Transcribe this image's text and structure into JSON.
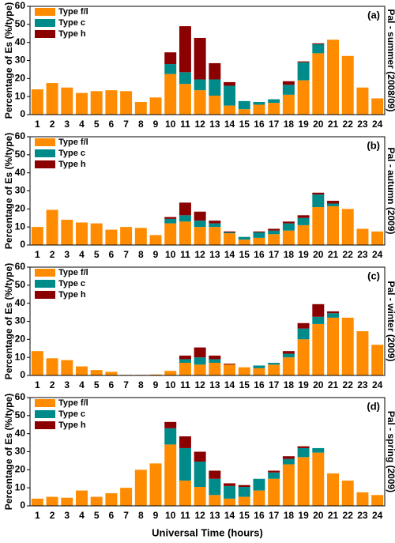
{
  "chart_data": [
    {
      "type": "bar",
      "stacked": true,
      "panel_label": "(a)",
      "side_label": "Pal - summer (2008/09)",
      "ylabel": "Percentage of Es (%/type)",
      "categories": [
        "1",
        "2",
        "3",
        "4",
        "5",
        "6",
        "7",
        "8",
        "9",
        "10",
        "11",
        "12",
        "13",
        "14",
        "15",
        "16",
        "17",
        "18",
        "19",
        "20",
        "21",
        "22",
        "23",
        "24"
      ],
      "series": [
        {
          "name": "Type f/l",
          "color": "#ff8c00",
          "values": [
            14,
            17.5,
            15,
            12,
            13,
            13.5,
            13,
            7,
            9.5,
            22.5,
            17,
            13.5,
            10.5,
            5,
            3,
            5.5,
            6.5,
            11,
            19,
            34,
            41.5,
            32.5,
            15,
            9
          ]
        },
        {
          "name": "Type c",
          "color": "#008b8b",
          "values": [
            0,
            0,
            0,
            0,
            0,
            0,
            0,
            0,
            0,
            5.5,
            6.5,
            6,
            9,
            11,
            4.5,
            1.5,
            2,
            5.5,
            10,
            5,
            0,
            0,
            0,
            0
          ]
        },
        {
          "name": "Type h",
          "color": "#8b0000",
          "values": [
            0,
            0,
            0,
            0,
            0,
            0,
            0,
            0,
            0,
            6.5,
            25.5,
            23,
            9,
            2,
            0,
            0,
            0,
            2,
            0.5,
            0.5,
            0,
            0,
            0,
            0
          ]
        }
      ],
      "ylim": [
        0,
        60
      ],
      "yticks": [
        0,
        10,
        20,
        30,
        40,
        50,
        60
      ],
      "legend": "upper left"
    },
    {
      "type": "bar",
      "stacked": true,
      "panel_label": "(b)",
      "side_label": "Pal - autumn (2009)",
      "ylabel": "Percentage of Es (%/type)",
      "categories": [
        "1",
        "2",
        "3",
        "4",
        "5",
        "6",
        "7",
        "8",
        "9",
        "10",
        "11",
        "12",
        "13",
        "14",
        "15",
        "16",
        "17",
        "18",
        "19",
        "20",
        "21",
        "22",
        "23",
        "24"
      ],
      "series": [
        {
          "name": "Type f/l",
          "color": "#ff8c00",
          "values": [
            10,
            19.5,
            14,
            12.5,
            12,
            8.5,
            10,
            9.5,
            5.5,
            12,
            13,
            10,
            10,
            6.5,
            3,
            4,
            6,
            8,
            11,
            21,
            21.5,
            20,
            9,
            7.5
          ]
        },
        {
          "name": "Type c",
          "color": "#008b8b",
          "values": [
            0,
            0,
            0,
            0,
            0,
            0,
            0,
            0,
            0,
            2.5,
            3.5,
            3.5,
            2,
            0.5,
            1.5,
            3,
            2,
            4,
            4,
            7,
            1.5,
            0,
            0,
            0
          ]
        },
        {
          "name": "Type h",
          "color": "#8b0000",
          "values": [
            0,
            0,
            0,
            0,
            0,
            0,
            0,
            0,
            0,
            1,
            7,
            5,
            1.5,
            0.5,
            0,
            0.5,
            1,
            1,
            1.5,
            1,
            1.5,
            0,
            0,
            0
          ]
        }
      ],
      "ylim": [
        0,
        60
      ],
      "yticks": [
        0,
        10,
        20,
        30,
        40,
        50,
        60
      ],
      "legend": "upper left"
    },
    {
      "type": "bar",
      "stacked": true,
      "panel_label": "(c)",
      "side_label": "Pal - winter (2009)",
      "ylabel": "Percentage of Es (%/type)",
      "categories": [
        "1",
        "2",
        "3",
        "4",
        "5",
        "6",
        "7",
        "8",
        "9",
        "10",
        "11",
        "12",
        "13",
        "14",
        "15",
        "16",
        "17",
        "18",
        "19",
        "20",
        "21",
        "22",
        "23",
        "24"
      ],
      "series": [
        {
          "name": "Type f/l",
          "color": "#ff8c00",
          "values": [
            13.5,
            9.5,
            8.5,
            5,
            3,
            2,
            0.3,
            0.3,
            0.5,
            2.5,
            7,
            6,
            7,
            6,
            4.5,
            4,
            6,
            10,
            20,
            28.5,
            32,
            32,
            24.5,
            17
          ]
        },
        {
          "name": "Type c",
          "color": "#008b8b",
          "values": [
            0,
            0,
            0,
            0,
            0,
            0,
            0,
            0,
            0,
            0,
            2,
            4,
            2,
            0,
            0,
            1.5,
            1,
            2,
            6,
            4,
            2.5,
            0,
            0,
            0
          ]
        },
        {
          "name": "Type h",
          "color": "#8b0000",
          "values": [
            0,
            0,
            0,
            0,
            0,
            0,
            0,
            0,
            0,
            0,
            2,
            5.5,
            2,
            0.5,
            0,
            0,
            0,
            1.5,
            3,
            7,
            1,
            0,
            0,
            0
          ]
        }
      ],
      "ylim": [
        0,
        60
      ],
      "yticks": [
        0,
        10,
        20,
        30,
        40,
        50,
        60
      ],
      "legend": "upper left"
    },
    {
      "type": "bar",
      "stacked": true,
      "panel_label": "(d)",
      "side_label": "Pal - spring (2009)",
      "ylabel": "Percentage of Es (%/type)",
      "xlabel": "Universal Time (hours)",
      "categories": [
        "1",
        "2",
        "3",
        "4",
        "5",
        "6",
        "7",
        "8",
        "9",
        "10",
        "11",
        "12",
        "13",
        "14",
        "15",
        "16",
        "17",
        "18",
        "19",
        "20",
        "21",
        "22",
        "23",
        "24"
      ],
      "series": [
        {
          "name": "Type f/l",
          "color": "#ff8c00",
          "values": [
            4,
            5,
            4.5,
            8.5,
            5,
            7,
            10,
            20,
            23.5,
            34,
            14,
            10.5,
            6,
            4,
            5,
            8.5,
            15,
            23,
            27,
            29.5,
            18,
            14,
            7.5,
            6
          ]
        },
        {
          "name": "Type c",
          "color": "#008b8b",
          "values": [
            0,
            0,
            0,
            0,
            0,
            0,
            0,
            0,
            0,
            9,
            18,
            14,
            9,
            7,
            5.5,
            6.5,
            3.5,
            3,
            5,
            2.5,
            0,
            0,
            0,
            0
          ]
        },
        {
          "name": "Type h",
          "color": "#8b0000",
          "values": [
            0,
            0,
            0,
            0,
            0,
            0,
            0,
            0,
            0,
            3.5,
            6.5,
            5.5,
            4.5,
            1.5,
            1,
            0,
            1,
            1.5,
            1,
            0,
            0,
            0,
            0,
            0
          ]
        }
      ],
      "ylim": [
        0,
        60
      ],
      "yticks": [
        0,
        10,
        20,
        30,
        40,
        50,
        60
      ],
      "legend": "upper left"
    }
  ]
}
